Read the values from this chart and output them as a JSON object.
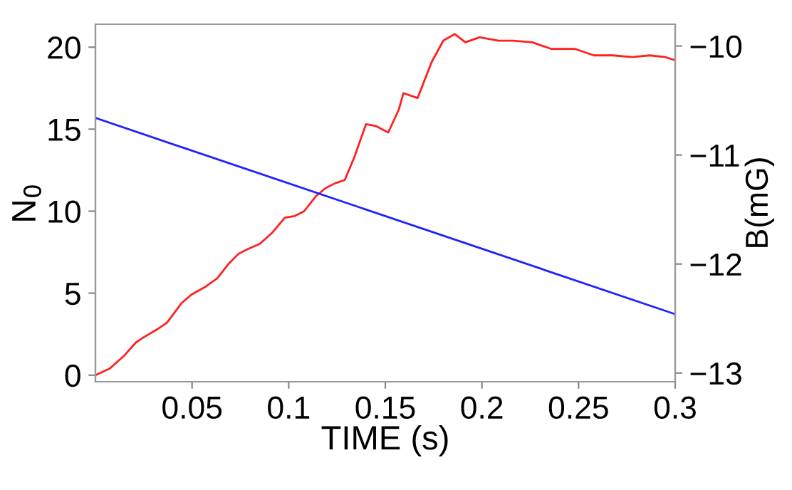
{
  "chart_data": {
    "type": "line",
    "xlabel": "TIME (s)",
    "ylabel": "N$_{0}$",
    "y2label": "B(mG)",
    "xlim": [
      0,
      0.3
    ],
    "xticks": [
      0.05,
      0.1,
      0.15,
      0.2,
      0.25,
      0.3
    ],
    "ylim": [
      -0.4,
      21.4
    ],
    "yticks": [
      0,
      5,
      10,
      15,
      20
    ],
    "y2lim": [
      -13.08,
      -9.8
    ],
    "y2ticks": [
      {
        "value": -13,
        "label": "−13"
      },
      {
        "value": -12,
        "label": "−12"
      },
      {
        "value": -11,
        "label": "−11"
      },
      {
        "value": -10,
        "label": "−10"
      }
    ],
    "grid": false,
    "legend": false,
    "series": [
      {
        "color": "#ff2020",
        "x": [
          0,
          0.0074,
          0.0149,
          0.021,
          0.0248,
          0.032,
          0.037,
          0.0446,
          0.0495,
          0.057,
          0.063,
          0.069,
          0.074,
          0.079,
          0.085,
          0.0916,
          0.098,
          0.103,
          0.108,
          0.114,
          0.119,
          0.124,
          0.129,
          0.134,
          0.14,
          0.145,
          0.1515,
          0.157,
          0.1594,
          0.1667,
          0.174,
          0.18,
          0.186,
          0.1914,
          0.1988,
          0.2086,
          0.216,
          0.226,
          0.2357,
          0.248,
          0.2579,
          0.2677,
          0.2776,
          0.287,
          0.2948,
          0.3
        ],
        "values": [
          0,
          0.4,
          1.2,
          2.0,
          2.3,
          2.8,
          3.2,
          4.4,
          4.9,
          5.4,
          5.9,
          6.8,
          7.4,
          7.7,
          8.0,
          8.7,
          9.6,
          9.7,
          10.0,
          10.9,
          11.4,
          11.7,
          11.9,
          13.3,
          15.3,
          15.2,
          14.8,
          16.2,
          17.2,
          16.9,
          19.1,
          20.4,
          20.8,
          20.3,
          20.6,
          20.4,
          20.4,
          20.3,
          19.9,
          19.9,
          19.5,
          19.5,
          19.4,
          19.5,
          19.4,
          19.2
        ]
      },
      {
        "color": "#2020ff",
        "axis": "y2",
        "x": [
          0,
          0.3
        ],
        "values": [
          -10.66,
          -12.46
        ]
      }
    ]
  }
}
